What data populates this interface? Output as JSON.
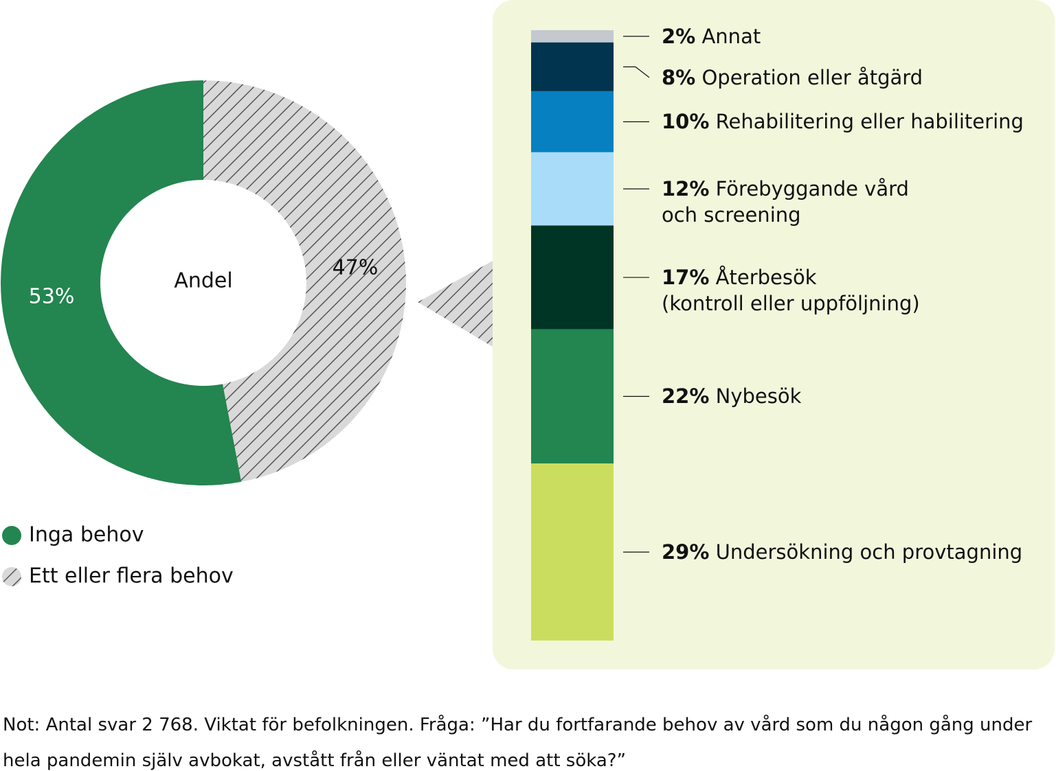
{
  "chart_data": [
    {
      "type": "donut",
      "center_label": "Andel",
      "categories": [
        "Inga behov",
        "Ett eller flera behov"
      ],
      "values": [
        53,
        47
      ],
      "value_labels": [
        "53%",
        "47%"
      ],
      "colors": [
        "#23854f",
        "hatch"
      ]
    },
    {
      "type": "stacked-bar",
      "ylim": [
        0,
        100
      ],
      "series": [
        {
          "name": "Annat",
          "color": "#c3c9cf",
          "values": [
            2
          ],
          "value_labels": [
            "2%"
          ]
        },
        {
          "name": "Operation eller åtgärd",
          "color": "#00344f",
          "values": [
            8
          ],
          "value_labels": [
            "8%"
          ]
        },
        {
          "name": "Rehabilitering eller habilitering",
          "color": "#0680c0",
          "values": [
            10
          ],
          "value_labels": [
            "10%"
          ]
        },
        {
          "name": "Förebyggande vård\noch screening",
          "color": "#a8dcf8",
          "values": [
            12
          ],
          "value_labels": [
            "12%"
          ]
        },
        {
          "name": "Återbesök\n(kontroll eller uppföljning)",
          "color": "#003526",
          "values": [
            17
          ],
          "value_labels": [
            "17%"
          ]
        },
        {
          "name": "Nybesök",
          "color": "#23854f",
          "values": [
            22
          ],
          "value_labels": [
            "22%"
          ]
        },
        {
          "name": "Undersökning och provtagning",
          "color": "#cbdd5e",
          "values": [
            29
          ],
          "value_labels": [
            "29%"
          ]
        }
      ]
    }
  ],
  "note": "Not: Antal svar 2 768. Viktat för befolkningen. Fråga: ”Har du fortfarande behov av vård som du någon gång under hela pandemin själv avbokat, avstått från eller väntat med att söka?”"
}
